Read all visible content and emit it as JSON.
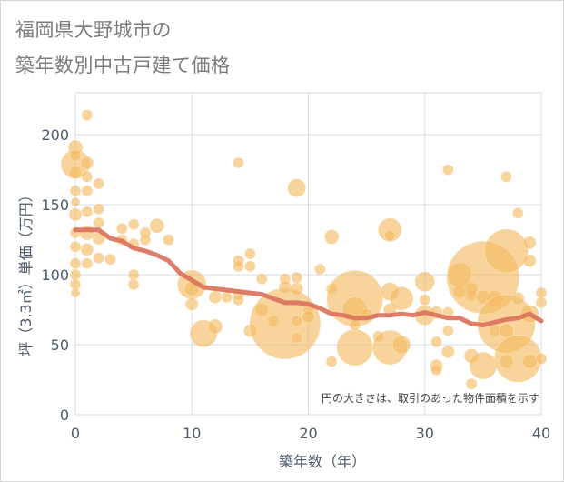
{
  "title_line1": "福岡県大野城市の",
  "title_line2": "築年数別中古戸建て価格",
  "chart_data": {
    "type": "scatter",
    "xlabel": "築年数（年）",
    "ylabel": "坪（3.3㎡）単価（万円）",
    "xlim": [
      0,
      40
    ],
    "ylim": [
      0,
      230
    ],
    "xticks": [
      0,
      10,
      20,
      30,
      40
    ],
    "yticks": [
      0,
      50,
      100,
      150,
      200
    ],
    "grid": true,
    "note": "円の大きさは、取引のあった物件面積を示す",
    "bubble_color": "#f3b95f",
    "line_color": "#d9705a",
    "trend": {
      "x": [
        0,
        1,
        2,
        3,
        4,
        5,
        6,
        7,
        8,
        9,
        10,
        11,
        12,
        13,
        14,
        15,
        16,
        17,
        18,
        19,
        20,
        21,
        22,
        23,
        24,
        25,
        26,
        27,
        28,
        29,
        30,
        31,
        32,
        33,
        34,
        35,
        36,
        37,
        38,
        39,
        40
      ],
      "y": [
        132,
        132,
        132,
        126,
        124,
        119,
        117,
        114,
        110,
        101,
        96,
        91,
        90,
        89,
        88,
        87,
        86,
        83,
        80,
        80,
        79,
        76,
        72,
        71,
        69,
        69,
        71,
        71,
        72,
        71,
        73,
        71,
        69,
        69,
        65,
        64,
        66,
        68,
        69,
        72,
        67
      ]
    },
    "points": [
      {
        "x": 0,
        "y": 179,
        "s": 16
      },
      {
        "x": 0,
        "y": 191,
        "s": 8
      },
      {
        "x": 0,
        "y": 185,
        "s": 6
      },
      {
        "x": 0,
        "y": 173,
        "s": 7
      },
      {
        "x": 0,
        "y": 160,
        "s": 6
      },
      {
        "x": 0,
        "y": 152,
        "s": 5
      },
      {
        "x": 0,
        "y": 143,
        "s": 7
      },
      {
        "x": 0,
        "y": 130,
        "s": 6
      },
      {
        "x": 0,
        "y": 120,
        "s": 6
      },
      {
        "x": 0,
        "y": 108,
        "s": 6
      },
      {
        "x": 0,
        "y": 100,
        "s": 6
      },
      {
        "x": 0,
        "y": 93,
        "s": 6
      },
      {
        "x": 0,
        "y": 87,
        "s": 5
      },
      {
        "x": 1,
        "y": 214,
        "s": 6
      },
      {
        "x": 1,
        "y": 180,
        "s": 7
      },
      {
        "x": 1,
        "y": 170,
        "s": 6
      },
      {
        "x": 1,
        "y": 160,
        "s": 6
      },
      {
        "x": 1,
        "y": 145,
        "s": 6
      },
      {
        "x": 1,
        "y": 130,
        "s": 8
      },
      {
        "x": 1,
        "y": 118,
        "s": 7
      },
      {
        "x": 1,
        "y": 108,
        "s": 6
      },
      {
        "x": 2,
        "y": 165,
        "s": 6
      },
      {
        "x": 2,
        "y": 147,
        "s": 6
      },
      {
        "x": 2,
        "y": 137,
        "s": 6
      },
      {
        "x": 2,
        "y": 126,
        "s": 7
      },
      {
        "x": 2,
        "y": 112,
        "s": 6
      },
      {
        "x": 3,
        "y": 111,
        "s": 6
      },
      {
        "x": 4,
        "y": 133,
        "s": 6
      },
      {
        "x": 4,
        "y": 125,
        "s": 6
      },
      {
        "x": 5,
        "y": 136,
        "s": 6
      },
      {
        "x": 5,
        "y": 122,
        "s": 6
      },
      {
        "x": 5,
        "y": 100,
        "s": 6
      },
      {
        "x": 5,
        "y": 93,
        "s": 6
      },
      {
        "x": 6,
        "y": 130,
        "s": 6
      },
      {
        "x": 6,
        "y": 125,
        "s": 6
      },
      {
        "x": 7,
        "y": 135,
        "s": 8
      },
      {
        "x": 8,
        "y": 125,
        "s": 6
      },
      {
        "x": 10,
        "y": 93,
        "s": 16
      },
      {
        "x": 10,
        "y": 90,
        "s": 8
      },
      {
        "x": 10,
        "y": 79,
        "s": 7
      },
      {
        "x": 11,
        "y": 58,
        "s": 15
      },
      {
        "x": 12,
        "y": 84,
        "s": 7
      },
      {
        "x": 12,
        "y": 63,
        "s": 8
      },
      {
        "x": 13,
        "y": 84,
        "s": 6
      },
      {
        "x": 14,
        "y": 180,
        "s": 6
      },
      {
        "x": 14,
        "y": 110,
        "s": 6
      },
      {
        "x": 14,
        "y": 106,
        "s": 6
      },
      {
        "x": 14,
        "y": 86,
        "s": 6
      },
      {
        "x": 14,
        "y": 82,
        "s": 6
      },
      {
        "x": 15,
        "y": 115,
        "s": 6
      },
      {
        "x": 15,
        "y": 106,
        "s": 6
      },
      {
        "x": 15,
        "y": 60,
        "s": 7
      },
      {
        "x": 16,
        "y": 97,
        "s": 6
      },
      {
        "x": 16,
        "y": 75,
        "s": 7
      },
      {
        "x": 17,
        "y": 67,
        "s": 6
      },
      {
        "x": 18,
        "y": 65,
        "s": 39
      },
      {
        "x": 18,
        "y": 97,
        "s": 6
      },
      {
        "x": 18,
        "y": 91,
        "s": 7
      },
      {
        "x": 19,
        "y": 162,
        "s": 10
      },
      {
        "x": 19,
        "y": 98,
        "s": 6
      },
      {
        "x": 19,
        "y": 90,
        "s": 7
      },
      {
        "x": 19,
        "y": 67,
        "s": 6
      },
      {
        "x": 19,
        "y": 55,
        "s": 6
      },
      {
        "x": 20,
        "y": 75,
        "s": 6
      },
      {
        "x": 20,
        "y": 70,
        "s": 7
      },
      {
        "x": 21,
        "y": 104,
        "s": 6
      },
      {
        "x": 22,
        "y": 127,
        "s": 8
      },
      {
        "x": 22,
        "y": 90,
        "s": 6
      },
      {
        "x": 22,
        "y": 38,
        "s": 6
      },
      {
        "x": 24,
        "y": 83,
        "s": 31
      },
      {
        "x": 24,
        "y": 75,
        "s": 14
      },
      {
        "x": 24,
        "y": 48,
        "s": 20
      },
      {
        "x": 24,
        "y": 64,
        "s": 6
      },
      {
        "x": 25,
        "y": 72,
        "s": 6
      },
      {
        "x": 26,
        "y": 56,
        "s": 6
      },
      {
        "x": 27,
        "y": 132,
        "s": 13
      },
      {
        "x": 27,
        "y": 128,
        "s": 6
      },
      {
        "x": 27,
        "y": 88,
        "s": 10
      },
      {
        "x": 27,
        "y": 75,
        "s": 7
      },
      {
        "x": 27,
        "y": 48,
        "s": 19
      },
      {
        "x": 28,
        "y": 83,
        "s": 13
      },
      {
        "x": 28,
        "y": 50,
        "s": 10
      },
      {
        "x": 30,
        "y": 95,
        "s": 11
      },
      {
        "x": 30,
        "y": 82,
        "s": 6
      },
      {
        "x": 30,
        "y": 71,
        "s": 11
      },
      {
        "x": 31,
        "y": 73,
        "s": 7
      },
      {
        "x": 31,
        "y": 52,
        "s": 6
      },
      {
        "x": 31,
        "y": 35,
        "s": 7
      },
      {
        "x": 31,
        "y": 32,
        "s": 6
      },
      {
        "x": 32,
        "y": 175,
        "s": 6
      },
      {
        "x": 32,
        "y": 73,
        "s": 6
      },
      {
        "x": 32,
        "y": 45,
        "s": 7
      },
      {
        "x": 32,
        "y": 60,
        "s": 6
      },
      {
        "x": 33,
        "y": 100,
        "s": 13
      },
      {
        "x": 33,
        "y": 88,
        "s": 7
      },
      {
        "x": 34,
        "y": 90,
        "s": 7
      },
      {
        "x": 34,
        "y": 42,
        "s": 8
      },
      {
        "x": 34,
        "y": 22,
        "s": 6
      },
      {
        "x": 34,
        "y": 85,
        "s": 6
      },
      {
        "x": 35,
        "y": 98,
        "s": 40
      },
      {
        "x": 35,
        "y": 84,
        "s": 8
      },
      {
        "x": 35,
        "y": 35,
        "s": 15
      },
      {
        "x": 36,
        "y": 83,
        "s": 9
      },
      {
        "x": 36,
        "y": 60,
        "s": 6
      },
      {
        "x": 37,
        "y": 170,
        "s": 6
      },
      {
        "x": 37,
        "y": 117,
        "s": 24
      },
      {
        "x": 37,
        "y": 65,
        "s": 32
      },
      {
        "x": 37,
        "y": 60,
        "s": 8
      },
      {
        "x": 37,
        "y": 38,
        "s": 7
      },
      {
        "x": 38,
        "y": 144,
        "s": 6
      },
      {
        "x": 38,
        "y": 83,
        "s": 7
      },
      {
        "x": 38,
        "y": 40,
        "s": 26
      },
      {
        "x": 39,
        "y": 123,
        "s": 7
      },
      {
        "x": 39,
        "y": 110,
        "s": 7
      },
      {
        "x": 39,
        "y": 72,
        "s": 10
      },
      {
        "x": 39,
        "y": 38,
        "s": 8
      },
      {
        "x": 40,
        "y": 87,
        "s": 6
      },
      {
        "x": 40,
        "y": 80,
        "s": 6
      },
      {
        "x": 40,
        "y": 40,
        "s": 6
      }
    ]
  }
}
